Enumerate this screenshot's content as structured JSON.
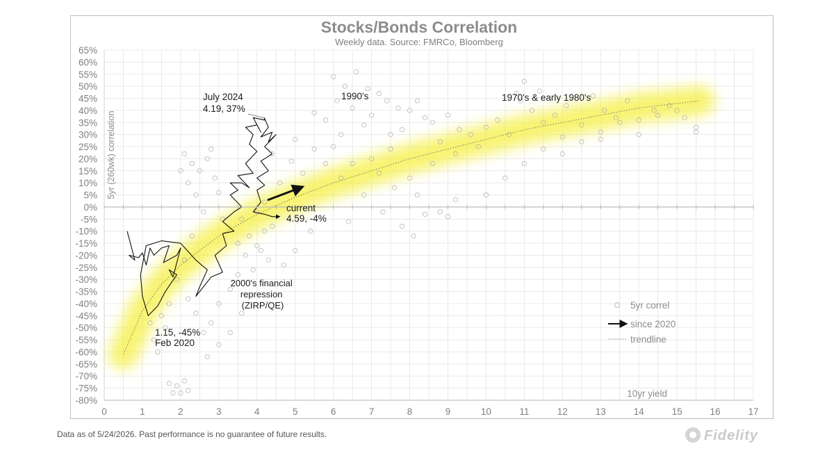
{
  "chart_data": {
    "type": "scatter",
    "title": "Stocks/Bonds Correlation",
    "subtitle": "Weekly data.  Source: FMRCo, Bloomberg",
    "ylabel": "5yr (260wk) correlation",
    "xlabel": "10yr yield",
    "xlim": [
      0,
      17
    ],
    "ylim": [
      -80,
      65
    ],
    "x_ticks": [
      "0",
      "1",
      "2",
      "3",
      "4",
      "5",
      "6",
      "7",
      "8",
      "9",
      "10",
      "11",
      "12",
      "13",
      "14",
      "15",
      "16",
      "17"
    ],
    "y_ticks": [
      "65%",
      "60%",
      "55%",
      "50%",
      "45%",
      "40%",
      "35%",
      "30%",
      "25%",
      "20%",
      "15%",
      "10%",
      "5%",
      "0%",
      "-5%",
      "-10%",
      "-15%",
      "-20%",
      "-25%",
      "-30%",
      "-35%",
      "-40%",
      "-45%",
      "-50%",
      "-55%",
      "-60%",
      "-65%",
      "-70%",
      "-75%",
      "-80%"
    ],
    "grid": true,
    "legend_position": "bottom-right",
    "legend": [
      "5yr correl",
      "since 2020",
      "trendline"
    ],
    "series": [
      {
        "name": "5yr correl",
        "style": "scatter",
        "points": [
          [
            6.0,
            54
          ],
          [
            6.3,
            50
          ],
          [
            6.6,
            56
          ],
          [
            6.9,
            49
          ],
          [
            7.2,
            47
          ],
          [
            6.1,
            44
          ],
          [
            6.5,
            41
          ],
          [
            7.0,
            38
          ],
          [
            7.4,
            44
          ],
          [
            7.7,
            41
          ],
          [
            8.0,
            40
          ],
          [
            8.4,
            37
          ],
          [
            8.2,
            44
          ],
          [
            7.8,
            32
          ],
          [
            6.8,
            34
          ],
          [
            6.2,
            30
          ],
          [
            5.8,
            36
          ],
          [
            5.5,
            39
          ],
          [
            7.5,
            30
          ],
          [
            8.6,
            35
          ],
          [
            9.0,
            38
          ],
          [
            9.3,
            32
          ],
          [
            8.8,
            27
          ],
          [
            9.6,
            30
          ],
          [
            10.0,
            33
          ],
          [
            10.3,
            36
          ],
          [
            10.6,
            30
          ],
          [
            10.9,
            44
          ],
          [
            11.2,
            40
          ],
          [
            11.5,
            35
          ],
          [
            11.8,
            38
          ],
          [
            12.1,
            42
          ],
          [
            12.5,
            34
          ],
          [
            12.8,
            46
          ],
          [
            13.1,
            40
          ],
          [
            13.4,
            37
          ],
          [
            13.7,
            44
          ],
          [
            14.0,
            30
          ],
          [
            14.4,
            40
          ],
          [
            14.8,
            42
          ],
          [
            15.2,
            37
          ],
          [
            15.5,
            31
          ],
          [
            12.0,
            29
          ],
          [
            13.0,
            28
          ],
          [
            10.8,
            47
          ],
          [
            11.0,
            52
          ],
          [
            11.4,
            48
          ],
          [
            9.8,
            25
          ],
          [
            9.2,
            22
          ],
          [
            8.6,
            18
          ],
          [
            8.0,
            12
          ],
          [
            7.6,
            8
          ],
          [
            7.2,
            14
          ],
          [
            6.8,
            5
          ],
          [
            7.0,
            20
          ],
          [
            7.5,
            24
          ],
          [
            8.2,
            5
          ],
          [
            8.8,
            -2
          ],
          [
            9.2,
            3
          ],
          [
            8.4,
            -3
          ],
          [
            6.2,
            12
          ],
          [
            5.8,
            18
          ],
          [
            5.5,
            24
          ],
          [
            5.2,
            14
          ],
          [
            4.9,
            19
          ],
          [
            4.6,
            10
          ],
          [
            4.4,
            22
          ],
          [
            5.0,
            28
          ],
          [
            6.0,
            25
          ],
          [
            6.5,
            18
          ],
          [
            2.0,
            15
          ],
          [
            2.1,
            22
          ],
          [
            2.2,
            10
          ],
          [
            2.3,
            18
          ],
          [
            2.4,
            5
          ],
          [
            2.5,
            15
          ],
          [
            2.6,
            -2
          ],
          [
            2.7,
            20
          ],
          [
            2.8,
            24
          ],
          [
            2.9,
            12
          ],
          [
            3.0,
            6
          ],
          [
            3.1,
            -5
          ],
          [
            2.3,
            -12
          ],
          [
            2.1,
            -22
          ],
          [
            1.9,
            -30
          ],
          [
            2.2,
            -38
          ],
          [
            2.4,
            -44
          ],
          [
            2.6,
            -52
          ],
          [
            2.8,
            -48
          ],
          [
            3.0,
            -40
          ],
          [
            3.3,
            -34
          ],
          [
            3.5,
            -28
          ],
          [
            3.7,
            -20
          ],
          [
            3.9,
            -26
          ],
          [
            3.6,
            -44
          ],
          [
            3.3,
            -52
          ],
          [
            3.0,
            -57
          ],
          [
            2.7,
            -62
          ],
          [
            1.5,
            -45
          ],
          [
            1.7,
            -40
          ],
          [
            4.0,
            -16
          ],
          [
            4.2,
            -10
          ],
          [
            4.1,
            -18
          ],
          [
            4.3,
            -22
          ],
          [
            3.8,
            -12
          ],
          [
            3.5,
            -15
          ],
          [
            3.6,
            -5
          ],
          [
            4.0,
            -2
          ],
          [
            4.4,
            -8
          ],
          [
            4.2,
            2
          ],
          [
            1.7,
            -73
          ],
          [
            1.9,
            -74
          ],
          [
            2.0,
            -77
          ],
          [
            2.2,
            -76
          ],
          [
            1.8,
            -77
          ],
          [
            2.1,
            -72
          ],
          [
            1.4,
            -60
          ],
          [
            1.3,
            -55
          ],
          [
            1.6,
            -50
          ],
          [
            1.2,
            -48
          ],
          [
            5.0,
            -18
          ],
          [
            4.7,
            -24
          ],
          [
            5.4,
            -10
          ],
          [
            7.8,
            -8
          ],
          [
            7.3,
            -2
          ],
          [
            8.1,
            -12
          ],
          [
            9.0,
            -4
          ],
          [
            6.4,
            -6
          ],
          [
            10.0,
            5
          ],
          [
            10.5,
            12
          ],
          [
            11.0,
            18
          ],
          [
            11.5,
            24
          ],
          [
            12.0,
            22
          ],
          [
            12.5,
            27
          ],
          [
            13.0,
            31
          ],
          [
            13.5,
            35
          ],
          [
            14.0,
            36
          ],
          [
            14.5,
            38
          ],
          [
            15.0,
            40
          ],
          [
            15.5,
            33
          ]
        ]
      },
      {
        "name": "since 2020",
        "style": "line",
        "points": [
          [
            0.6,
            -10
          ],
          [
            0.7,
            -16
          ],
          [
            0.8,
            -22
          ],
          [
            0.65,
            -20
          ],
          [
            0.9,
            -21
          ],
          [
            1.0,
            -19
          ],
          [
            1.1,
            -24
          ],
          [
            1.2,
            -17
          ],
          [
            1.3,
            -20
          ],
          [
            1.5,
            -17
          ],
          [
            1.7,
            -16
          ],
          [
            1.55,
            -23
          ],
          [
            1.9,
            -20
          ],
          [
            2.0,
            -17
          ],
          [
            1.8,
            -29
          ],
          [
            1.7,
            -26
          ],
          [
            1.9,
            -28
          ],
          [
            1.6,
            -35
          ],
          [
            1.4,
            -41
          ],
          [
            1.15,
            -45
          ],
          [
            1.0,
            -37
          ],
          [
            0.95,
            -28
          ],
          [
            1.1,
            -16
          ],
          [
            1.5,
            -14
          ],
          [
            2.0,
            -15
          ],
          [
            2.4,
            -22
          ],
          [
            2.7,
            -26
          ],
          [
            2.5,
            -33
          ],
          [
            2.4,
            -37
          ],
          [
            2.8,
            -29
          ],
          [
            3.1,
            -27
          ],
          [
            2.9,
            -20
          ],
          [
            3.2,
            -16
          ],
          [
            3.1,
            -11
          ],
          [
            3.4,
            -10
          ],
          [
            3.1,
            -6
          ],
          [
            3.4,
            -2
          ],
          [
            3.6,
            0
          ],
          [
            3.3,
            5
          ],
          [
            3.5,
            7
          ],
          [
            3.3,
            10
          ],
          [
            3.6,
            10
          ],
          [
            3.8,
            8
          ],
          [
            3.5,
            13
          ],
          [
            3.9,
            14
          ],
          [
            3.7,
            18
          ],
          [
            4.0,
            23
          ],
          [
            3.8,
            26
          ],
          [
            3.9,
            30
          ],
          [
            3.7,
            33
          ],
          [
            4.0,
            34
          ],
          [
            4.1,
            31
          ],
          [
            3.9,
            37
          ],
          [
            4.2,
            36
          ],
          [
            4.19,
            37
          ],
          [
            4.3,
            33
          ],
          [
            4.1,
            29
          ],
          [
            4.4,
            31
          ],
          [
            4.3,
            27
          ],
          [
            4.5,
            30
          ],
          [
            4.2,
            25
          ],
          [
            4.4,
            22
          ],
          [
            4.1,
            19
          ],
          [
            4.3,
            15
          ],
          [
            4.0,
            12
          ],
          [
            4.2,
            9
          ],
          [
            4.0,
            7
          ],
          [
            4.1,
            2
          ],
          [
            3.9,
            -2
          ],
          [
            4.2,
            -3
          ],
          [
            4.4,
            -4
          ],
          [
            4.59,
            -4
          ]
        ]
      },
      {
        "name": "trendline",
        "style": "dotted",
        "points": [
          [
            0.5,
            -61
          ],
          [
            1,
            -43
          ],
          [
            1.5,
            -32
          ],
          [
            2,
            -24
          ],
          [
            3,
            -12
          ],
          [
            4,
            -3
          ],
          [
            5,
            4
          ],
          [
            6,
            10
          ],
          [
            7,
            15
          ],
          [
            8,
            20
          ],
          [
            9,
            24
          ],
          [
            10,
            28
          ],
          [
            11,
            32
          ],
          [
            12,
            35
          ],
          [
            13,
            38
          ],
          [
            14,
            41
          ],
          [
            15.6,
            44
          ]
        ]
      }
    ],
    "annotations": [
      {
        "text_lines": [
          "July 2024",
          "4.19, 37%"
        ],
        "x": 4.19,
        "y": 37
      },
      {
        "text_lines": [
          "1990's"
        ],
        "x": 6.6,
        "y": 45
      },
      {
        "text_lines": [
          "1970's & early 1980's"
        ],
        "x": 11.6,
        "y": 45
      },
      {
        "text_lines": [
          "current",
          "4.59, -4%"
        ],
        "x": 4.59,
        "y": -4
      },
      {
        "text_lines": [
          "2000's financial",
          "repression",
          "(ZIRP/QE)"
        ],
        "x": 3.0,
        "y": -30
      },
      {
        "text_lines": [
          "1.15, -45%",
          "Feb 2020"
        ],
        "x": 1.15,
        "y": -45
      }
    ],
    "colors": {
      "highlight_band": "#f5ef3a",
      "scatter": "#a8a8a8",
      "since_2020": "#111111",
      "grid": "#e4e4e4",
      "text_gray": "#8c8c8c"
    }
  },
  "footnote": "Data as of 5/24/2026. Past performance is no guarantee of future results.",
  "logo_text": "Fidelity"
}
